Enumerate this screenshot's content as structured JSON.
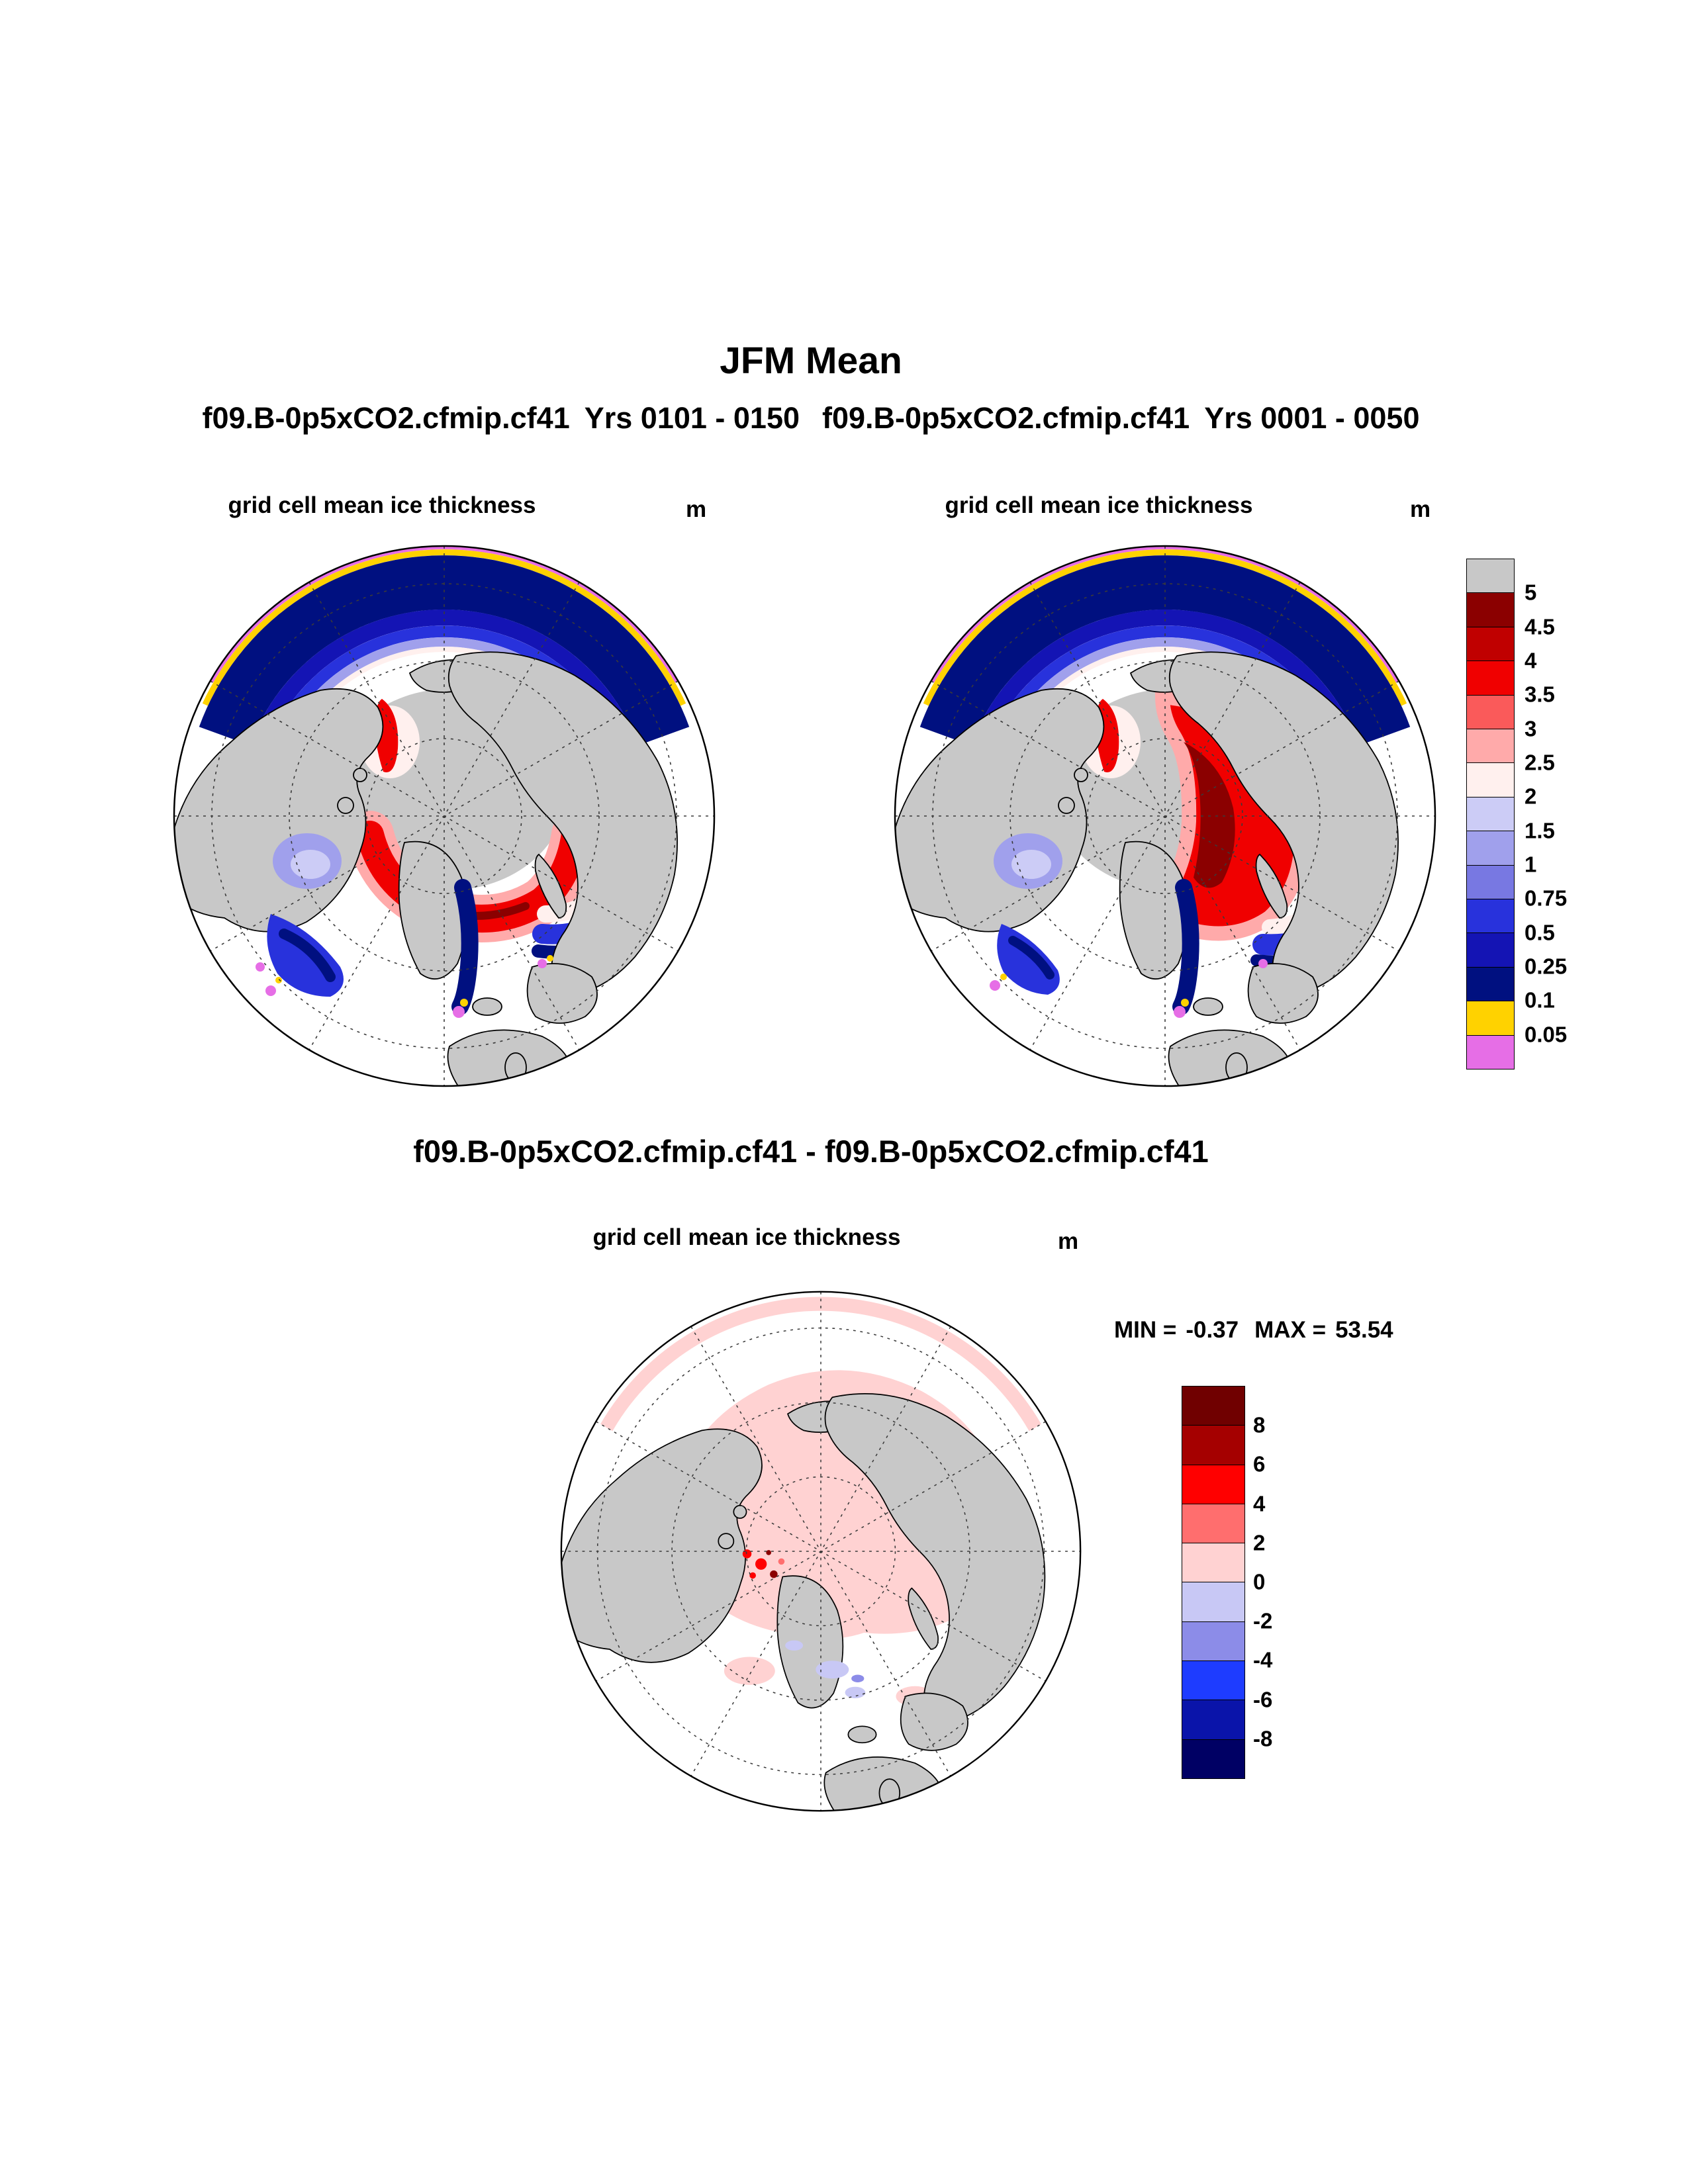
{
  "title": "JFM Mean",
  "subtitle": {
    "case1": "f09.B-0p5xCO2.cfmip.cf41",
    "years1": "Yrs 0101 - 0150",
    "case2": "f09.B-0p5xCO2.cfmip.cf41",
    "years2": "Yrs 0001 - 0050"
  },
  "diff_header": "f09.B-0p5xCO2.cfmip.cf41 - f09.B-0p5xCO2.cfmip.cf41",
  "panels": {
    "left": {
      "title": "grid cell mean ice thickness",
      "units": "m"
    },
    "right": {
      "title": "grid cell mean ice thickness",
      "units": "m"
    },
    "diff": {
      "title": "grid cell mean ice thickness",
      "units": "m"
    }
  },
  "stats": {
    "min_label": "MIN = ",
    "min_value": "-0.37",
    "max_label": "MAX = ",
    "max_value": "53.54"
  },
  "colorbars": {
    "thickness": {
      "units": "m",
      "tick_labels_top_to_bottom": [
        "5",
        "4.5",
        "4",
        "3.5",
        "3",
        "2.5",
        "2",
        "1.5",
        "1",
        "0.75",
        "0.5",
        "0.25",
        "0.1",
        "0.05"
      ],
      "colors_top_to_bottom": [
        "#c8c8c8",
        "#8b0000",
        "#c00000",
        "#f00000",
        "#fa5a5a",
        "#ffaaaa",
        "#fff0ee",
        "#ccccf6",
        "#a0a0ec",
        "#7878e2",
        "#2832dc",
        "#1414b4",
        "#001080",
        "#ffd200",
        "#e66ee6"
      ]
    },
    "difference": {
      "units": "m",
      "tick_labels_top_to_bottom": [
        "8",
        "6",
        "4",
        "2",
        "0",
        "-2",
        "-4",
        "-6",
        "-8"
      ],
      "colors_top_to_bottom": [
        "#700000",
        "#a50000",
        "#ff0000",
        "#ff6e6e",
        "#ffd2d2",
        "#c8c8f5",
        "#8c8ce8",
        "#1e3cff",
        "#0a14aa",
        "#000064"
      ]
    }
  },
  "chart_data": [
    {
      "type": "heatmap",
      "variant": "north-polar-stereographic-map",
      "panel": "left",
      "season": "JFM",
      "case": "f09.B-0p5xCO2.cfmip.cf41",
      "years": "0101 - 0150",
      "title": "grid cell mean ice thickness",
      "units": "m",
      "contour_levels_m": [
        0.05,
        0.1,
        0.25,
        0.5,
        0.75,
        1,
        1.5,
        2,
        2.5,
        3,
        3.5,
        4,
        4.5,
        5
      ],
      "palette_top_to_bottom": [
        "#c8c8c8",
        "#8b0000",
        "#c00000",
        "#f00000",
        "#fa5a5a",
        "#ffaaaa",
        "#fff0ee",
        "#ccccf6",
        "#a0a0ec",
        "#7878e2",
        "#2832dc",
        "#1414b4",
        "#001080",
        "#ffd200",
        "#e66ee6"
      ],
      "legend_position": "right",
      "graticule": "dashed latitude circles and meridians every 30 degrees",
      "features": [
        "central Arctic Ocean shaded gray indicating ice thicker than 5 m",
        "red band of 3.5-5 m ice wrapping the basin margin north of Greenland toward Barents Sea",
        "dark blue 0.1-0.5 m thin-ice crescent across Bering Sea and Sea of Okhotsk at map top",
        "yellow (0.05-0.1 m) and violet (<0.05 m) fringe along the outer ice edge",
        "lavender 1-1.5 m ice filling Hudson Bay",
        "navy thin-ice streak along East Greenland and Labrador coasts",
        "gray land, white ice-free ocean"
      ]
    },
    {
      "type": "heatmap",
      "variant": "north-polar-stereographic-map",
      "panel": "right",
      "season": "JFM",
      "case": "f09.B-0p5xCO2.cfmip.cf41",
      "years": "0001 - 0050",
      "title": "grid cell mean ice thickness",
      "units": "m",
      "contour_levels_m": [
        0.05,
        0.1,
        0.25,
        0.5,
        0.75,
        1,
        1.5,
        2,
        2.5,
        3,
        3.5,
        4,
        4.5,
        5
      ],
      "palette_top_to_bottom": [
        "#c8c8c8",
        "#8b0000",
        "#c00000",
        "#f00000",
        "#fa5a5a",
        "#ffaaaa",
        "#fff0ee",
        "#ccccf6",
        "#a0a0ec",
        "#7878e2",
        "#2832dc",
        "#1414b4",
        "#001080",
        "#ffd200",
        "#e66ee6"
      ],
      "legend_position": "right",
      "graticule": "dashed latitude circles and meridians every 30 degrees",
      "features": [
        "central Arctic Ocean shaded gray indicating ice thicker than 5 m",
        "broad red 3.5-5 m region with dark-red 4.5-5 m core on the Eurasian side of the basin",
        "dark blue thin-ice crescent across Bering Sea and Sea of Okhotsk",
        "yellow and violet thin-ice fringe along the outer ice edge",
        "lavender 1-1.5 m ice in Hudson Bay",
        "navy streaks along East Greenland, Labrador and Barents margins"
      ]
    },
    {
      "type": "heatmap",
      "variant": "north-polar-stereographic-map",
      "panel": "difference",
      "season": "JFM",
      "expression": "f09.B-0p5xCO2.cfmip.cf41 - f09.B-0p5xCO2.cfmip.cf41",
      "title": "grid cell mean ice thickness",
      "units": "m",
      "min": -0.37,
      "max": 53.54,
      "contour_levels_m": [
        -8,
        -6,
        -4,
        -2,
        0,
        2,
        4,
        6,
        8
      ],
      "palette_top_to_bottom": [
        "#700000",
        "#a50000",
        "#ff0000",
        "#ff6e6e",
        "#ffd2d2",
        "#c8c8f5",
        "#8c8ce8",
        "#1e3cff",
        "#0a14aa",
        "#000064"
      ],
      "legend_position": "right",
      "graticule": "dashed latitude circles and meridians every 30 degrees",
      "features": [
        "pale pink 0-2 m positive difference covering most of the Arctic basin and marginal seas",
        "small cluster of strong red and dark-red positive differences near the Canadian Archipelago",
        "a few pale blue negative patches near the Greenland and Norwegian seas",
        "gray land, white ocean elsewhere"
      ]
    }
  ]
}
